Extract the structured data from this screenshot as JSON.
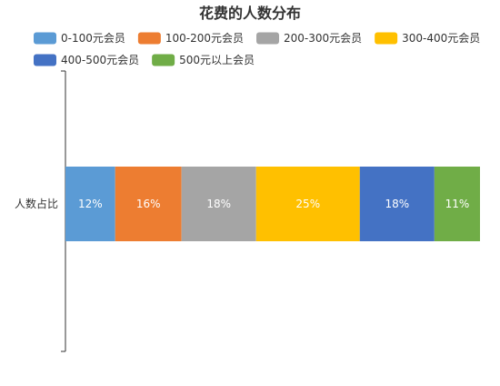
{
  "chart_data": {
    "type": "bar",
    "orientation": "horizontal",
    "stacked": true,
    "title": "花费的人数分布",
    "categories": [
      "人数占比"
    ],
    "series": [
      {
        "name": "0-100元会员",
        "values": [
          12
        ],
        "color": "#5B9BD5",
        "label": "12%"
      },
      {
        "name": "100-200元会员",
        "values": [
          16
        ],
        "color": "#ED7D31",
        "label": "16%"
      },
      {
        "name": "200-300元会员",
        "values": [
          18
        ],
        "color": "#A5A5A5",
        "label": "18%"
      },
      {
        "name": "300-400元会员",
        "values": [
          25
        ],
        "color": "#FFC000",
        "label": "25%"
      },
      {
        "name": "400-500元会员",
        "values": [
          18
        ],
        "color": "#4472C4",
        "label": "18%"
      },
      {
        "name": "500元以上会员",
        "values": [
          11
        ],
        "color": "#70AD47",
        "label": "11%"
      }
    ],
    "xlim": [
      0,
      100
    ],
    "legend_position": "top",
    "grid": false
  }
}
